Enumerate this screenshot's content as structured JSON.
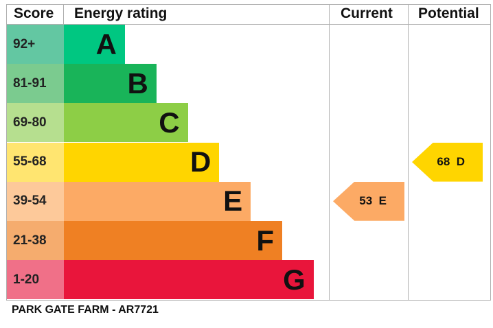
{
  "headers": {
    "score": "Score",
    "rating": "Energy rating",
    "current": "Current",
    "potential": "Potential"
  },
  "chart_data": {
    "type": "bar",
    "bands": [
      {
        "letter": "A",
        "range": "92+",
        "color": "#00c781",
        "score_color": "#63c7a2"
      },
      {
        "letter": "B",
        "range": "81-91",
        "color": "#19b459",
        "score_color": "#7bcb8f"
      },
      {
        "letter": "C",
        "range": "69-80",
        "color": "#8dce46",
        "score_color": "#b6df8f"
      },
      {
        "letter": "D",
        "range": "55-68",
        "color": "#ffd500",
        "score_color": "#ffe570"
      },
      {
        "letter": "E",
        "range": "39-54",
        "color": "#fcaa65",
        "score_color": "#fdc99a"
      },
      {
        "letter": "F",
        "range": "21-38",
        "color": "#ef8023",
        "score_color": "#f5ac6e"
      },
      {
        "letter": "G",
        "range": "1-20",
        "color": "#e9153b",
        "score_color": "#f07088"
      }
    ],
    "current": {
      "value": 53,
      "letter": "E",
      "label": "53  E",
      "color": "#fcaa65"
    },
    "potential": {
      "value": 68,
      "letter": "D",
      "label": "68  D",
      "color": "#ffd500"
    }
  },
  "footer": "PARK GATE FARM - AR7721"
}
